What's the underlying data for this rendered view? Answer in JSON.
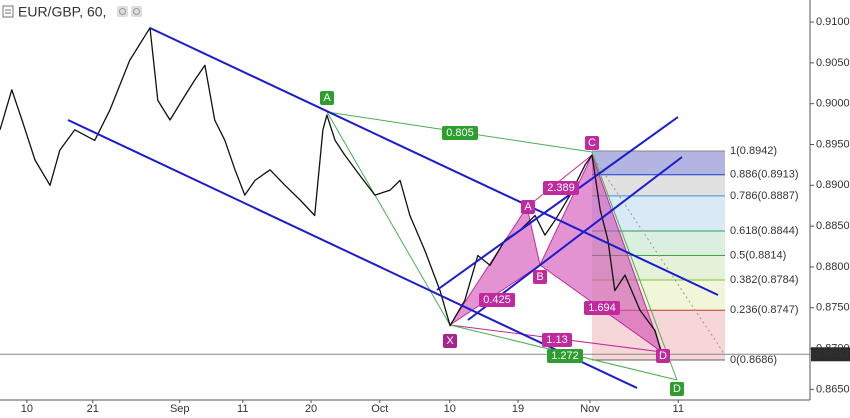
{
  "chart_data": {
    "type": "line",
    "title": "EUR/GBP, 60,",
    "x": [
      -66,
      -37,
      -12,
      20,
      57,
      81,
      118,
      167,
      204,
      253,
      303,
      322,
      352,
      389,
      413,
      438,
      462,
      487,
      512,
      536,
      561,
      598,
      635,
      672,
      708,
      728,
      738,
      758,
      782,
      819,
      856,
      893,
      918,
      942,
      979,
      1016,
      1041,
      1077,
      1109,
      1139,
      1176,
      1213,
      1250,
      1274,
      1299,
      1336,
      1373,
      1390,
      1410,
      1429,
      1446,
      1471,
      1508,
      1545,
      1562
    ],
    "values": [
      0.8968,
      0.9017,
      0.898,
      0.8931,
      0.89,
      0.8943,
      0.8968,
      0.8955,
      0.8992,
      0.9053,
      0.9093,
      0.9004,
      0.898,
      0.901,
      0.9029,
      0.9047,
      0.898,
      0.8955,
      0.8919,
      0.8888,
      0.8906,
      0.8919,
      0.89,
      0.8882,
      0.8863,
      0.8968,
      0.8986,
      0.8955,
      0.8937,
      0.8912,
      0.8888,
      0.8894,
      0.8906,
      0.8863,
      0.882,
      0.8771,
      0.8728,
      0.8759,
      0.8814,
      0.8802,
      0.8833,
      0.8845,
      0.8863,
      0.8839,
      0.8857,
      0.8888,
      0.8925,
      0.8937,
      0.887,
      0.8833,
      0.8771,
      0.879,
      0.8747,
      0.8722,
      0.8692
    ],
    "color": "#111111",
    "xlim": [
      -66,
      1926
    ],
    "ylim": [
      0.8637,
      0.9127
    ],
    "xticks": [
      {
        "value": 0,
        "label": "10"
      },
      {
        "value": 162,
        "label": "21"
      },
      {
        "value": 376,
        "label": "Sep"
      },
      {
        "value": 531,
        "label": "11"
      },
      {
        "value": 699,
        "label": "20"
      },
      {
        "value": 868,
        "label": "Oct"
      },
      {
        "value": 1040,
        "label": "10"
      },
      {
        "value": 1208,
        "label": "19"
      },
      {
        "value": 1385,
        "label": "Nov"
      },
      {
        "value": 1602,
        "label": "11"
      }
    ],
    "yticks": [
      {
        "value": 0.865,
        "label": "0.8650"
      },
      {
        "value": 0.87,
        "label": "0.8700"
      },
      {
        "value": 0.875,
        "label": "0.8750"
      },
      {
        "value": 0.88,
        "label": "0.8800"
      },
      {
        "value": 0.885,
        "label": "0.8850"
      },
      {
        "value": 0.89,
        "label": "0.8900"
      },
      {
        "value": 0.895,
        "label": "0.8950"
      },
      {
        "value": 0.9,
        "label": "0.9000"
      },
      {
        "value": 0.905,
        "label": "0.9050"
      },
      {
        "value": 0.91,
        "label": "0.9100"
      }
    ],
    "grid": false,
    "last_price": 0.8693,
    "fib_levels": [
      {
        "label": "1(0.8942)",
        "value": 0.8942,
        "color": "#888888",
        "band": "#a4a8dc"
      },
      {
        "label": "0.886(0.8913)",
        "value": 0.8913,
        "color": "#1a3fcf",
        "band": "#dcdcdc"
      },
      {
        "label": "0.786(0.8887)",
        "value": 0.8887,
        "color": "#3d93d6",
        "band": "#d2e5f5"
      },
      {
        "label": "0.618(0.8844)",
        "value": 0.8844,
        "color": "#2e9c6a",
        "band": "#d5ecd9"
      },
      {
        "label": "0.5(0.8814)",
        "value": 0.8814,
        "color": "#43a047",
        "band": "#e0f0d4"
      },
      {
        "label": "0.382(0.8784)",
        "value": 0.8784,
        "color": "#8bbf3a",
        "band": "#eef4d2"
      },
      {
        "label": "0.236(0.8747)",
        "value": 0.8747,
        "color": "#c0392b",
        "band": "#f5cfd0"
      },
      {
        "label": "0(0.8686)",
        "value": 0.8686,
        "color": "#666666"
      }
    ]
  },
  "annotations": {
    "pattern_points": [
      "X",
      "A",
      "B",
      "C",
      "D"
    ],
    "ratios": [
      "0.425",
      "2.389",
      "1.694",
      "1.13"
    ],
    "green_points": [
      "A",
      "D"
    ],
    "green_ratios": [
      "0.805",
      "1.272"
    ]
  }
}
